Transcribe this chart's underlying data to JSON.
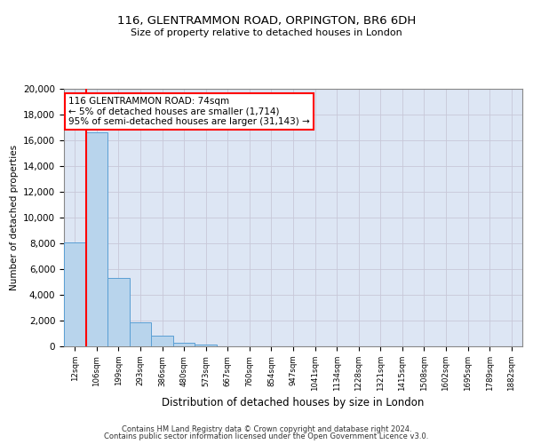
{
  "title1": "116, GLENTRAMMON ROAD, ORPINGTON, BR6 6DH",
  "title2": "Size of property relative to detached houses in London",
  "xlabel": "Distribution of detached houses by size in London",
  "ylabel": "Number of detached properties",
  "categories": [
    "12sqm",
    "106sqm",
    "199sqm",
    "293sqm",
    "386sqm",
    "480sqm",
    "573sqm",
    "667sqm",
    "760sqm",
    "854sqm",
    "947sqm",
    "1041sqm",
    "1134sqm",
    "1228sqm",
    "1321sqm",
    "1415sqm",
    "1508sqm",
    "1602sqm",
    "1695sqm",
    "1789sqm",
    "1882sqm"
  ],
  "bar_values": [
    8100,
    16600,
    5300,
    1850,
    800,
    280,
    170,
    0,
    0,
    0,
    0,
    0,
    0,
    0,
    0,
    0,
    0,
    0,
    0,
    0,
    0
  ],
  "bar_color": "#b8d4ec",
  "bar_edge_color": "#5a9fd4",
  "annotation_line1": "116 GLENTRAMMON ROAD: 74sqm",
  "annotation_line2": "← 5% of detached houses are smaller (1,714)",
  "annotation_line3": "95% of semi-detached houses are larger (31,143) →",
  "annotation_box_color": "white",
  "annotation_box_edge_color": "red",
  "vline_color": "red",
  "vline_x": 0.5,
  "ylim": [
    0,
    20000
  ],
  "yticks": [
    0,
    2000,
    4000,
    6000,
    8000,
    10000,
    12000,
    14000,
    16000,
    18000,
    20000
  ],
  "grid_color": "#c8c8d8",
  "bg_color": "#dde6f4",
  "footer1": "Contains HM Land Registry data © Crown copyright and database right 2024.",
  "footer2": "Contains public sector information licensed under the Open Government Licence v3.0."
}
